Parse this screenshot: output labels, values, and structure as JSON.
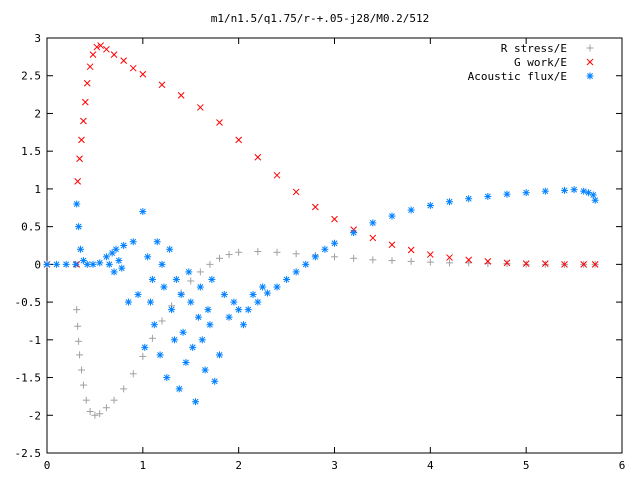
{
  "chart_data": {
    "type": "scatter",
    "title": "m1/n1.5/q1.75/r-+.05-j28/M0.2/512",
    "xlim": [
      0,
      6
    ],
    "ylim": [
      -2.5,
      3
    ],
    "x_ticks": [
      "0",
      "1",
      "2",
      "3",
      "4",
      "5",
      "6"
    ],
    "y_ticks": [
      "-2.5",
      "-2",
      "-1.5",
      "-1",
      "-0.5",
      "0",
      "0.5",
      "1",
      "1.5",
      "2",
      "2.5",
      "3"
    ],
    "grid": false,
    "legend_position": "top-right",
    "series": [
      {
        "name": "R stress/E",
        "marker": "plus",
        "color": "#a0a0a4",
        "x": [
          0.0,
          0.31,
          0.32,
          0.33,
          0.34,
          0.36,
          0.38,
          0.41,
          0.45,
          0.5,
          0.55,
          0.62,
          0.7,
          0.8,
          0.9,
          1.0,
          1.1,
          1.2,
          1.3,
          1.4,
          1.5,
          1.6,
          1.7,
          1.8,
          1.9,
          2.0,
          2.2,
          2.4,
          2.6,
          2.8,
          3.0,
          3.2,
          3.4,
          3.6,
          3.8,
          4.0,
          4.2,
          4.4,
          4.6,
          4.8,
          5.0,
          5.2,
          5.4,
          5.6,
          5.72
        ],
        "y": [
          0.0,
          -0.6,
          -0.82,
          -1.02,
          -1.2,
          -1.4,
          -1.6,
          -1.8,
          -1.95,
          -2.0,
          -1.98,
          -1.9,
          -1.8,
          -1.65,
          -1.45,
          -1.22,
          -0.98,
          -0.75,
          -0.55,
          -0.38,
          -0.22,
          -0.1,
          0.0,
          0.08,
          0.13,
          0.16,
          0.17,
          0.16,
          0.14,
          0.12,
          0.1,
          0.08,
          0.06,
          0.05,
          0.04,
          0.03,
          0.02,
          0.02,
          0.01,
          0.01,
          0.0,
          0.0,
          0.0,
          0.0,
          0.0
        ]
      },
      {
        "name": "G work/E",
        "marker": "cross",
        "color": "#ff0000",
        "x": [
          0.0,
          0.31,
          0.32,
          0.34,
          0.36,
          0.38,
          0.4,
          0.42,
          0.45,
          0.48,
          0.52,
          0.56,
          0.62,
          0.7,
          0.8,
          0.9,
          1.0,
          1.2,
          1.4,
          1.6,
          1.8,
          2.0,
          2.2,
          2.4,
          2.6,
          2.8,
          3.0,
          3.2,
          3.4,
          3.6,
          3.8,
          4.0,
          4.2,
          4.4,
          4.6,
          4.8,
          5.0,
          5.2,
          5.4,
          5.6,
          5.72
        ],
        "y": [
          0.0,
          0.0,
          1.1,
          1.4,
          1.65,
          1.9,
          2.15,
          2.4,
          2.62,
          2.78,
          2.88,
          2.9,
          2.85,
          2.78,
          2.7,
          2.6,
          2.52,
          2.38,
          2.24,
          2.08,
          1.88,
          1.65,
          1.42,
          1.18,
          0.96,
          0.76,
          0.6,
          0.46,
          0.35,
          0.26,
          0.19,
          0.13,
          0.09,
          0.06,
          0.04,
          0.02,
          0.01,
          0.01,
          0.0,
          0.0,
          0.0
        ]
      },
      {
        "name": "Acoustic flux/E",
        "marker": "star",
        "color": "#0080ff",
        "x": [
          0.0,
          0.1,
          0.2,
          0.3,
          0.31,
          0.33,
          0.35,
          0.38,
          0.42,
          0.48,
          0.55,
          0.62,
          0.65,
          0.68,
          0.7,
          0.72,
          0.75,
          0.78,
          0.8,
          0.85,
          0.9,
          0.95,
          1.0,
          1.02,
          1.05,
          1.08,
          1.1,
          1.12,
          1.15,
          1.18,
          1.2,
          1.22,
          1.25,
          1.28,
          1.3,
          1.33,
          1.35,
          1.38,
          1.4,
          1.42,
          1.45,
          1.48,
          1.5,
          1.52,
          1.55,
          1.58,
          1.6,
          1.62,
          1.65,
          1.68,
          1.7,
          1.72,
          1.75,
          1.8,
          1.85,
          1.9,
          1.95,
          2.0,
          2.05,
          2.1,
          2.15,
          2.2,
          2.25,
          2.3,
          2.4,
          2.5,
          2.6,
          2.7,
          2.8,
          2.9,
          3.0,
          3.2,
          3.4,
          3.6,
          3.8,
          4.0,
          4.2,
          4.4,
          4.6,
          4.8,
          5.0,
          5.2,
          5.4,
          5.5,
          5.6,
          5.65,
          5.7,
          5.72
        ],
        "y": [
          0.0,
          0.0,
          0.0,
          0.0,
          0.8,
          0.5,
          0.2,
          0.05,
          0.0,
          0.0,
          0.02,
          0.1,
          0.0,
          0.15,
          -0.1,
          0.2,
          0.05,
          -0.05,
          0.25,
          -0.5,
          0.3,
          -0.4,
          0.7,
          -1.1,
          0.1,
          -0.5,
          -0.2,
          -0.8,
          0.3,
          -1.2,
          0.0,
          -0.3,
          -1.5,
          0.2,
          -0.6,
          -1.0,
          -0.2,
          -1.65,
          -0.4,
          -0.9,
          -1.3,
          -0.1,
          -0.5,
          -1.1,
          -1.82,
          -0.7,
          -0.3,
          -1.0,
          -1.4,
          -0.6,
          -0.8,
          -0.2,
          -1.55,
          -1.2,
          -0.4,
          -0.7,
          -0.5,
          -0.6,
          -0.8,
          -0.6,
          -0.4,
          -0.5,
          -0.3,
          -0.38,
          -0.3,
          -0.2,
          -0.1,
          0.0,
          0.1,
          0.2,
          0.28,
          0.42,
          0.55,
          0.64,
          0.72,
          0.78,
          0.83,
          0.87,
          0.9,
          0.93,
          0.95,
          0.97,
          0.98,
          0.99,
          0.97,
          0.95,
          0.92,
          0.85
        ]
      }
    ]
  }
}
